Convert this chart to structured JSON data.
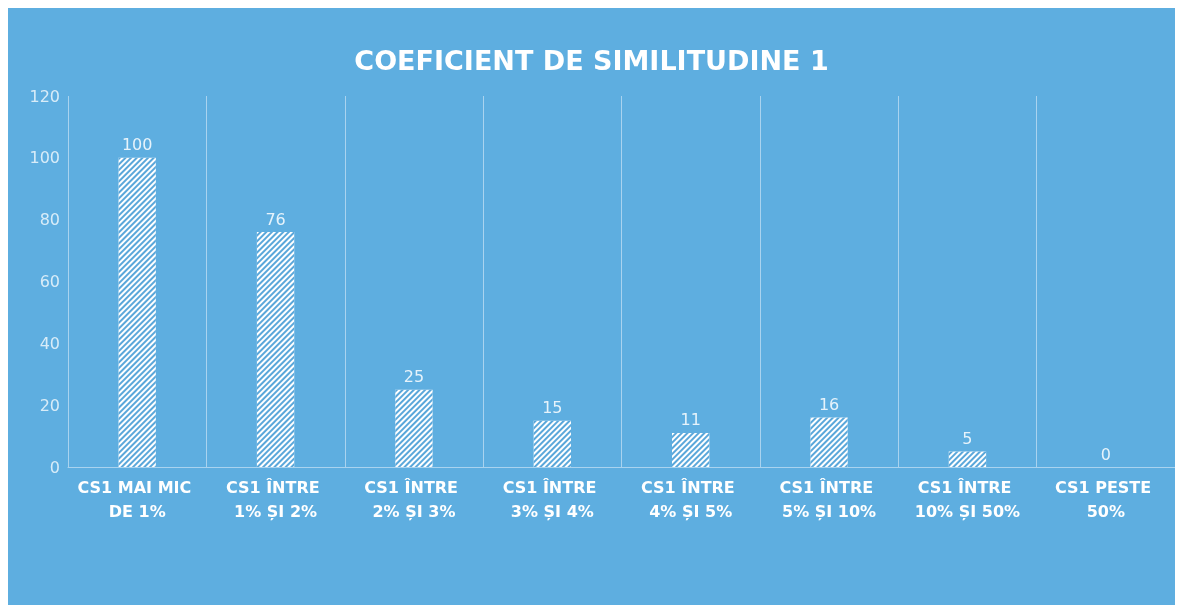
{
  "chart_data": {
    "type": "bar",
    "title": "COEFICIENT DE SIMILITUDINE 1",
    "categories": [
      "CS1 MAI MIC DE 1%",
      "CS1 ÎNTRE 1% ȘI 2%",
      "CS1 ÎNTRE 2% ȘI 3%",
      "CS1 ÎNTRE 3% ȘI 4%",
      "CS1 ÎNTRE 4% ȘI 5%",
      "CS1 ÎNTRE 5% ȘI 10%",
      "CS1 ÎNTRE 10% ȘI 50%",
      "CS1 PESTE 50%"
    ],
    "values": [
      100,
      76,
      25,
      15,
      11,
      16,
      5,
      0
    ],
    "color": "#ffffff",
    "ylim": [
      0,
      120
    ],
    "yticks": [
      0,
      20,
      40,
      60,
      80,
      100,
      120
    ],
    "grid": "x",
    "data_labels": true
  }
}
